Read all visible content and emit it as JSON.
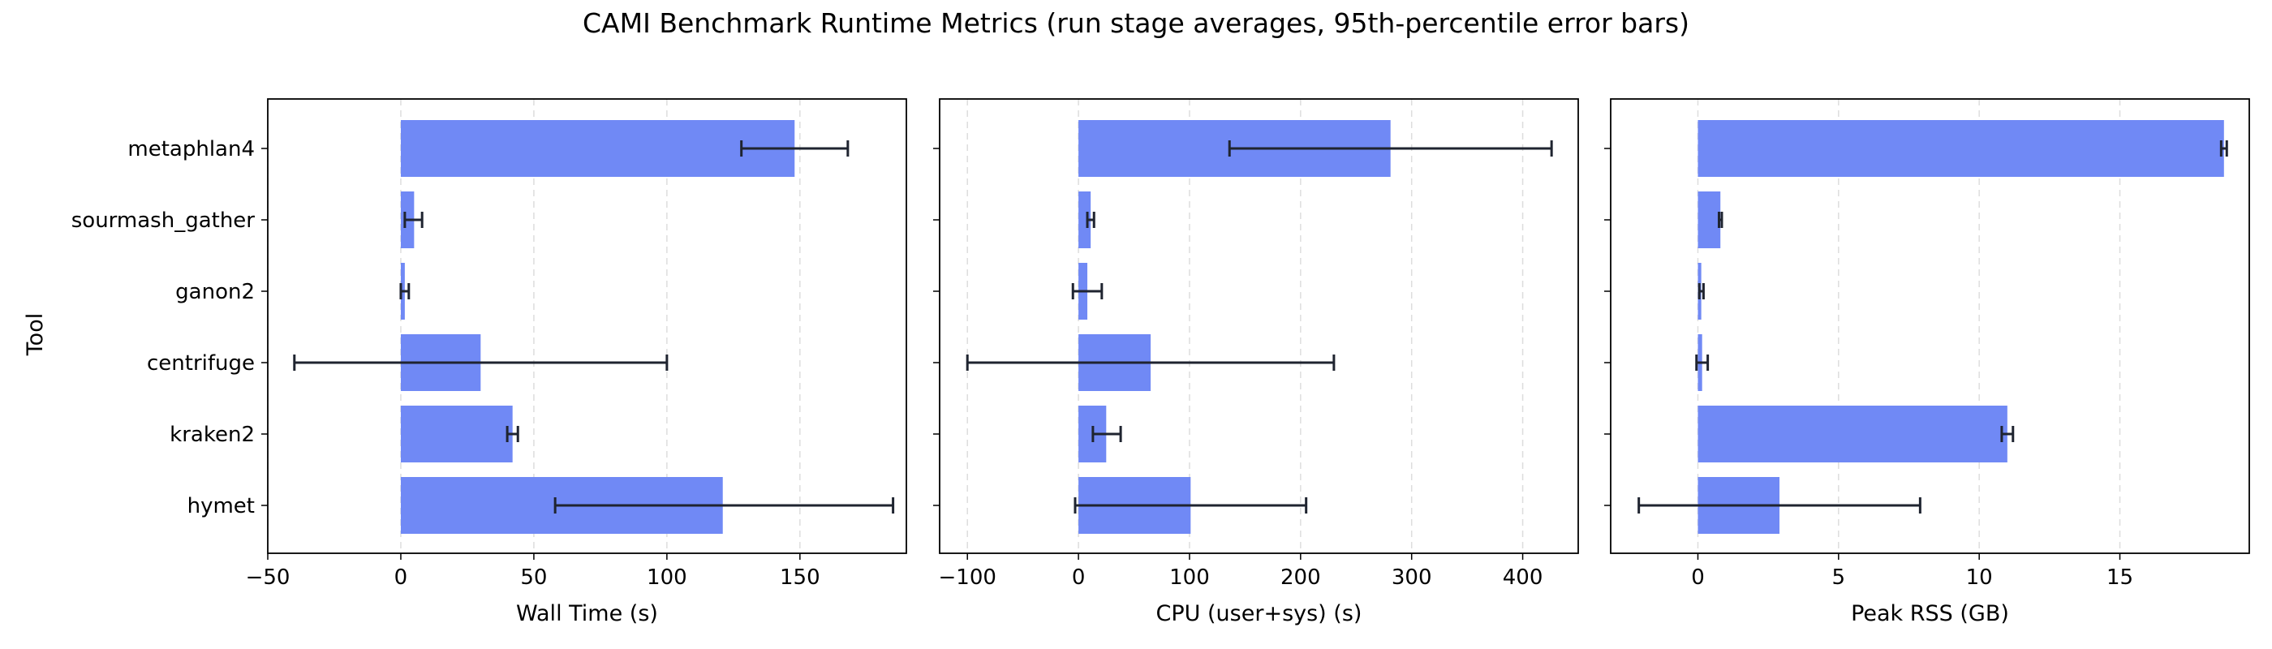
{
  "figure": {
    "title": "CAMI Benchmark Runtime Metrics (run stage averages, 95th-percentile error bars)",
    "ylabel": "Tool"
  },
  "colors": {
    "bar": "#7089f5",
    "error_bar": "#1f2430",
    "grid": "#dddddd"
  },
  "chart_data": [
    {
      "type": "bar",
      "orientation": "horizontal",
      "xlabel": "Wall Time (s)",
      "xlim": [
        -50,
        190
      ],
      "xticks": [
        -50,
        0,
        50,
        100,
        150
      ],
      "tick_labels": [
        "−50",
        "0",
        "50",
        "100",
        "150"
      ],
      "grid": "vertical dashed",
      "categories": [
        "metaphlan4",
        "sourmash_gather",
        "ganon2",
        "centrifuge",
        "kraken2",
        "hymet"
      ],
      "values": [
        148,
        5,
        1.5,
        30,
        42,
        121
      ],
      "error_low": [
        128,
        1.5,
        0,
        -40,
        40,
        58
      ],
      "error_high": [
        168,
        8,
        3,
        100,
        44,
        185
      ]
    },
    {
      "type": "bar",
      "orientation": "horizontal",
      "xlabel": "CPU (user+sys) (s)",
      "xlim": [
        -125,
        450
      ],
      "xticks": [
        -100,
        0,
        100,
        200,
        300,
        400
      ],
      "tick_labels": [
        "−100",
        "0",
        "100",
        "200",
        "300",
        "400"
      ],
      "grid": "vertical dashed",
      "categories": [
        "metaphlan4",
        "sourmash_gather",
        "ganon2",
        "centrifuge",
        "kraken2",
        "hymet"
      ],
      "values": [
        281,
        11,
        8,
        65,
        25,
        101
      ],
      "error_low": [
        136,
        8,
        -5,
        -100,
        13,
        -3
      ],
      "error_high": [
        426,
        14,
        21,
        230,
        38,
        205
      ]
    },
    {
      "type": "bar",
      "orientation": "horizontal",
      "xlabel": "Peak RSS (GB)",
      "xlim": [
        -3.1,
        19.6
      ],
      "xticks": [
        0,
        5,
        10,
        15
      ],
      "tick_labels": [
        "0",
        "5",
        "10",
        "15"
      ],
      "grid": "vertical dashed",
      "categories": [
        "metaphlan4",
        "sourmash_gather",
        "ganon2",
        "centrifuge",
        "kraken2",
        "hymet"
      ],
      "values": [
        18.7,
        0.8,
        0.12,
        0.15,
        11.0,
        2.9
      ],
      "error_low": [
        18.6,
        0.75,
        0.05,
        -0.05,
        10.8,
        -2.1
      ],
      "error_high": [
        18.8,
        0.85,
        0.2,
        0.35,
        11.2,
        7.9
      ]
    }
  ]
}
